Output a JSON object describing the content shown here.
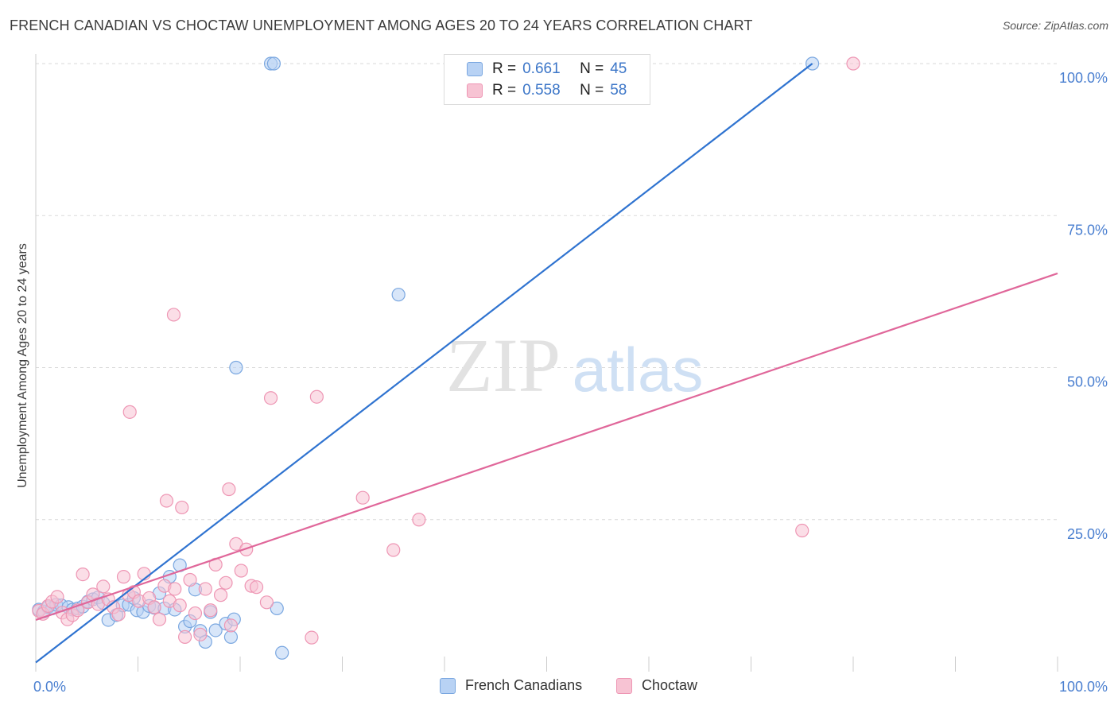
{
  "title": "FRENCH CANADIAN VS CHOCTAW UNEMPLOYMENT AMONG AGES 20 TO 24 YEARS CORRELATION CHART",
  "source": "Source: ZipAtlas.com",
  "watermark": {
    "zip": "ZIP",
    "atlas": "atlas"
  },
  "legend": {
    "r_label": "R =",
    "n_label": "N =",
    "rows": [
      {
        "name": "French Canadians",
        "r": "0.661",
        "n": "45"
      },
      {
        "name": "Choctaw",
        "r": "0.558",
        "n": "58"
      }
    ]
  },
  "colors": {
    "blue_fill": "#b8d2f4",
    "blue_stroke": "#7aa7e0",
    "blue_line": "#2f73d0",
    "pink_fill": "#f7c3d3",
    "pink_stroke": "#ee96b4",
    "pink_line": "#e0679a",
    "axis_text": "#4a7fd0",
    "grid": "#d9d9d9"
  },
  "chart_data": {
    "type": "scatter",
    "title": "FRENCH CANADIAN VS CHOCTAW UNEMPLOYMENT AMONG AGES 20 TO 24 YEARS CORRELATION CHART",
    "xlabel": "",
    "ylabel": "Unemployment Among Ages 20 to 24 years",
    "xlim": [
      0,
      100
    ],
    "ylim": [
      0,
      100
    ],
    "x_tick_labels": [
      {
        "value": 0,
        "label": "0.0%"
      },
      {
        "value": 100,
        "label": "100.0%"
      }
    ],
    "x_minor_ticks": [
      10,
      20,
      30,
      40,
      50,
      60,
      70,
      80,
      90,
      100
    ],
    "y_tick_labels": [
      {
        "value": 100,
        "label": "100.0%"
      },
      {
        "value": 75,
        "label": "75.0%"
      },
      {
        "value": 50,
        "label": "50.0%"
      },
      {
        "value": 25,
        "label": "25.0%"
      }
    ],
    "grid": true,
    "legend_position": "top-center",
    "series": [
      {
        "name": "French Canadians",
        "color": "blue",
        "r": 0.661,
        "n": 45,
        "trend": {
          "x0": 0,
          "y0": 1.5,
          "x1": 76,
          "y1": 100
        },
        "points": [
          [
            0.3,
            10.2
          ],
          [
            0.8,
            9.9
          ],
          [
            1.2,
            10.6
          ],
          [
            1.6,
            10.4
          ],
          [
            2.0,
            11.0
          ],
          [
            2.5,
            10.9
          ],
          [
            3.2,
            10.6
          ],
          [
            3.6,
            10.2
          ],
          [
            4.1,
            10.4
          ],
          [
            4.6,
            10.7
          ],
          [
            5.1,
            11.5
          ],
          [
            5.6,
            11.9
          ],
          [
            6.1,
            12.2
          ],
          [
            6.6,
            11.3
          ],
          [
            7.1,
            8.5
          ],
          [
            7.9,
            9.3
          ],
          [
            8.5,
            10.9
          ],
          [
            9.1,
            11.0
          ],
          [
            9.9,
            10.1
          ],
          [
            10.5,
            9.8
          ],
          [
            11.1,
            10.8
          ],
          [
            11.6,
            10.5
          ],
          [
            12.1,
            12.9
          ],
          [
            12.6,
            10.4
          ],
          [
            13.1,
            15.6
          ],
          [
            13.6,
            10.2
          ],
          [
            14.1,
            17.5
          ],
          [
            14.6,
            7.4
          ],
          [
            15.1,
            8.3
          ],
          [
            15.6,
            13.5
          ],
          [
            16.1,
            6.7
          ],
          [
            16.6,
            4.9
          ],
          [
            17.1,
            9.8
          ],
          [
            17.6,
            6.8
          ],
          [
            18.6,
            7.9
          ],
          [
            19.1,
            5.7
          ],
          [
            19.4,
            8.6
          ],
          [
            19.6,
            50.0
          ],
          [
            23.0,
            100.0
          ],
          [
            23.3,
            100.0
          ],
          [
            23.6,
            10.4
          ],
          [
            24.1,
            3.1
          ],
          [
            35.5,
            62.0
          ],
          [
            76.0,
            100.0
          ],
          [
            9.6,
            12.1
          ]
        ]
      },
      {
        "name": "Choctaw",
        "color": "pink",
        "r": 0.558,
        "n": 58,
        "trend": {
          "x0": 0,
          "y0": 8.5,
          "x1": 100,
          "y1": 65.5
        },
        "points": [
          [
            0.3,
            10.0
          ],
          [
            0.7,
            9.5
          ],
          [
            1.2,
            10.8
          ],
          [
            1.6,
            11.5
          ],
          [
            2.1,
            12.3
          ],
          [
            2.6,
            9.7
          ],
          [
            3.1,
            8.6
          ],
          [
            3.6,
            9.3
          ],
          [
            4.1,
            10.1
          ],
          [
            4.6,
            16.0
          ],
          [
            5.1,
            11.4
          ],
          [
            5.6,
            12.7
          ],
          [
            6.1,
            11.1
          ],
          [
            6.6,
            14.0
          ],
          [
            7.1,
            11.9
          ],
          [
            7.6,
            10.6
          ],
          [
            8.1,
            9.4
          ],
          [
            8.6,
            15.6
          ],
          [
            9.1,
            12.6
          ],
          [
            9.6,
            13.1
          ],
          [
            10.1,
            11.6
          ],
          [
            10.6,
            16.1
          ],
          [
            11.1,
            12.1
          ],
          [
            11.6,
            10.6
          ],
          [
            12.1,
            8.6
          ],
          [
            12.6,
            14.1
          ],
          [
            13.1,
            11.6
          ],
          [
            13.6,
            13.6
          ],
          [
            14.1,
            10.9
          ],
          [
            14.6,
            5.7
          ],
          [
            15.1,
            15.1
          ],
          [
            15.6,
            9.6
          ],
          [
            16.1,
            6.1
          ],
          [
            16.6,
            13.6
          ],
          [
            17.1,
            10.1
          ],
          [
            17.6,
            17.6
          ],
          [
            18.1,
            12.6
          ],
          [
            18.6,
            14.6
          ],
          [
            19.1,
            7.6
          ],
          [
            19.6,
            21.0
          ],
          [
            20.1,
            16.6
          ],
          [
            20.6,
            20.1
          ],
          [
            21.1,
            14.1
          ],
          [
            21.6,
            13.9
          ],
          [
            22.6,
            11.4
          ],
          [
            12.8,
            28.1
          ],
          [
            14.3,
            27.0
          ],
          [
            18.9,
            30.0
          ],
          [
            23.0,
            45.0
          ],
          [
            27.5,
            45.2
          ],
          [
            9.2,
            42.7
          ],
          [
            13.5,
            58.7
          ],
          [
            32.0,
            28.6
          ],
          [
            35.0,
            20.0
          ],
          [
            37.5,
            25.0
          ],
          [
            75.0,
            23.2
          ],
          [
            80.0,
            100.0
          ],
          [
            27.0,
            5.6
          ]
        ]
      }
    ]
  }
}
